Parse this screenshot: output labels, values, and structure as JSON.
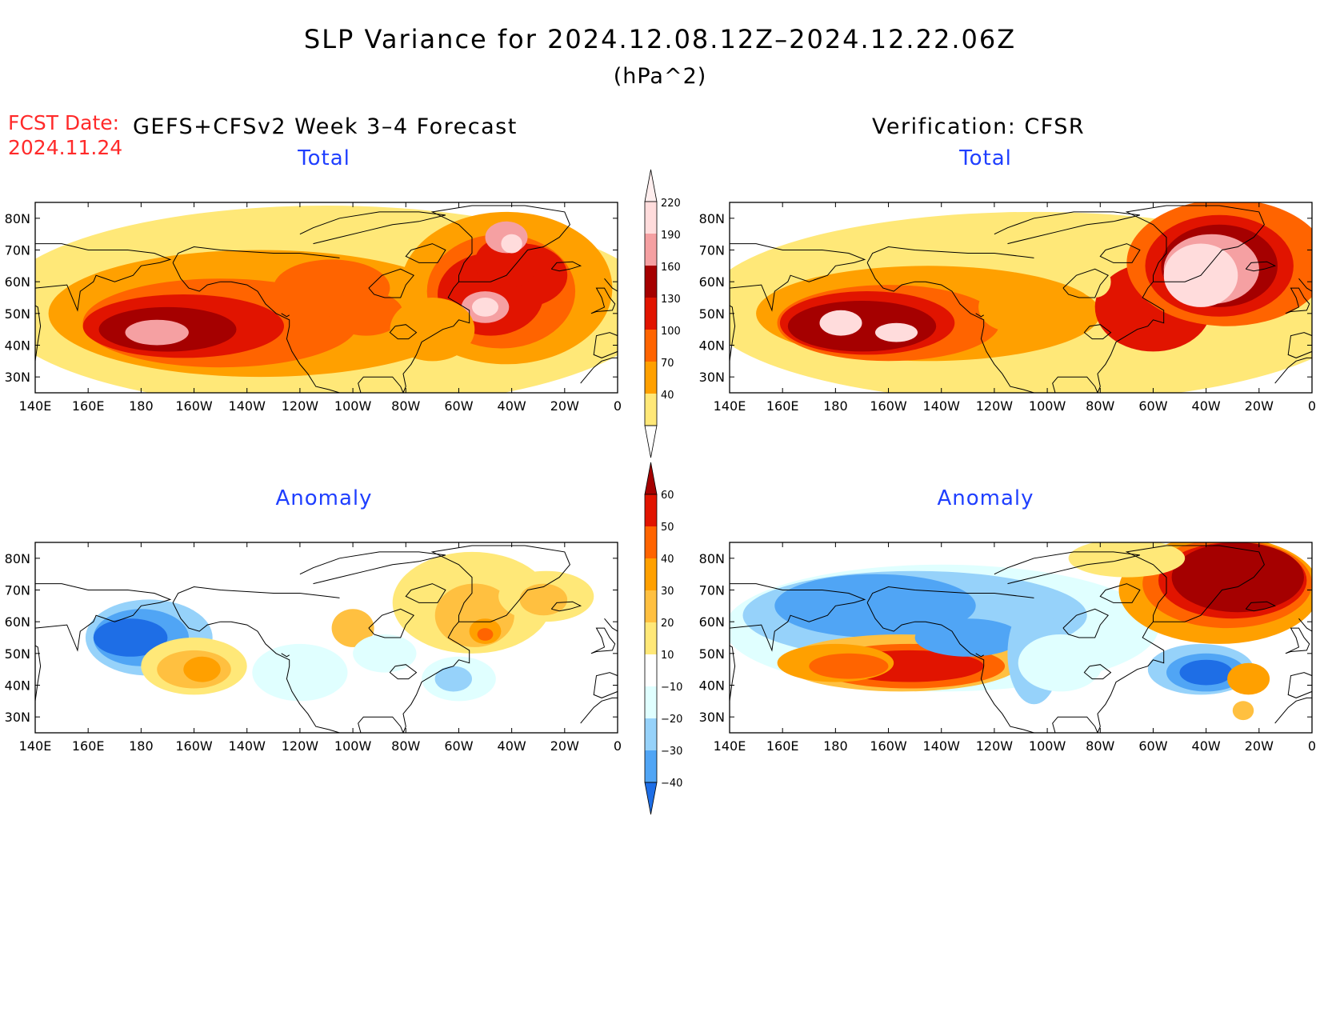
{
  "title": "SLP Variance for 2024.12.08.12Z–2024.12.22.06Z",
  "units": "(hPa^2)",
  "fcst_date_label": "FCST Date:",
  "fcst_date_value": "2024.11.24",
  "left_heading": "GEFS+CFSv2 Week 3–4 Forecast",
  "right_heading": "Verification: CFSR",
  "panels": [
    {
      "id": "fcst-total",
      "subtitle": "Total"
    },
    {
      "id": "verif-total",
      "subtitle": "Total"
    },
    {
      "id": "fcst-anomaly",
      "subtitle": "Anomaly"
    },
    {
      "id": "verif-anomaly",
      "subtitle": "Anomaly"
    }
  ],
  "lat_labels": [
    "80N",
    "70N",
    "60N",
    "50N",
    "40N",
    "30N"
  ],
  "lon_labels": [
    "140E",
    "160E",
    "180",
    "160W",
    "140W",
    "120W",
    "100W",
    "80W",
    "60W",
    "40W",
    "20W",
    "0"
  ],
  "lat_range": [
    25,
    85
  ],
  "lon_range_east_deg": [
    140,
    360
  ],
  "total_colorbar": {
    "levels": [
      "40",
      "70",
      "100",
      "130",
      "160",
      "190",
      "220"
    ],
    "colors": [
      "#ffe878",
      "#ffa000",
      "#ff6400",
      "#e11400",
      "#a50000",
      "#f5a0a2",
      "#ffdcdc"
    ]
  },
  "anomaly_colorbar": {
    "levels": [
      "60",
      "50",
      "40",
      "30",
      "20",
      "10",
      "−10",
      "−20",
      "−30",
      "−40"
    ],
    "colors": [
      "#a50000",
      "#e11400",
      "#ff6400",
      "#ffa000",
      "#ffc040",
      "#ffe878",
      "#ffffff",
      "#e0ffff",
      "#96d2fa",
      "#50a5f5",
      "#1e6ee6"
    ]
  }
}
